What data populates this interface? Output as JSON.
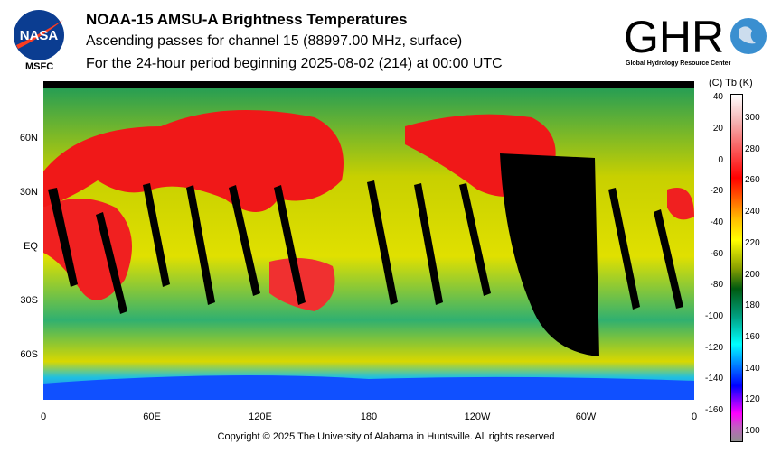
{
  "header": {
    "title": "NOAA-15 AMSU-A Brightness Temperatures",
    "subtitle": "Ascending passes for channel 15 (88997.00 MHz, surface)",
    "period": "For the 24-hour period beginning 2025-08-02 (214) at 00:00 UTC"
  },
  "logos": {
    "nasa": "NASA",
    "msfc": "MSFC",
    "ghrc": "GHRC",
    "ghrc_sub": "Global Hydrology Resource Center"
  },
  "map": {
    "lat_labels": [
      "60N",
      "30N",
      "EQ",
      "30S",
      "60S"
    ],
    "lon_labels": [
      "0",
      "60E",
      "120E",
      "180",
      "120W",
      "60W",
      "0"
    ]
  },
  "colorbar": {
    "header": "(C)  Tb  (K)",
    "celsius_ticks": [
      "40",
      "20",
      "0",
      "-20",
      "-40",
      "-60",
      "-80",
      "-100",
      "-120",
      "-140",
      "-160"
    ],
    "kelvin_ticks": [
      "300",
      "280",
      "260",
      "240",
      "220",
      "200",
      "180",
      "160",
      "140",
      "120",
      "100"
    ],
    "range_k": [
      95,
      315
    ]
  },
  "footer": {
    "copyright": "Copyright © 2025 The University of Alabama in Huntsville.  All rights reserved"
  }
}
